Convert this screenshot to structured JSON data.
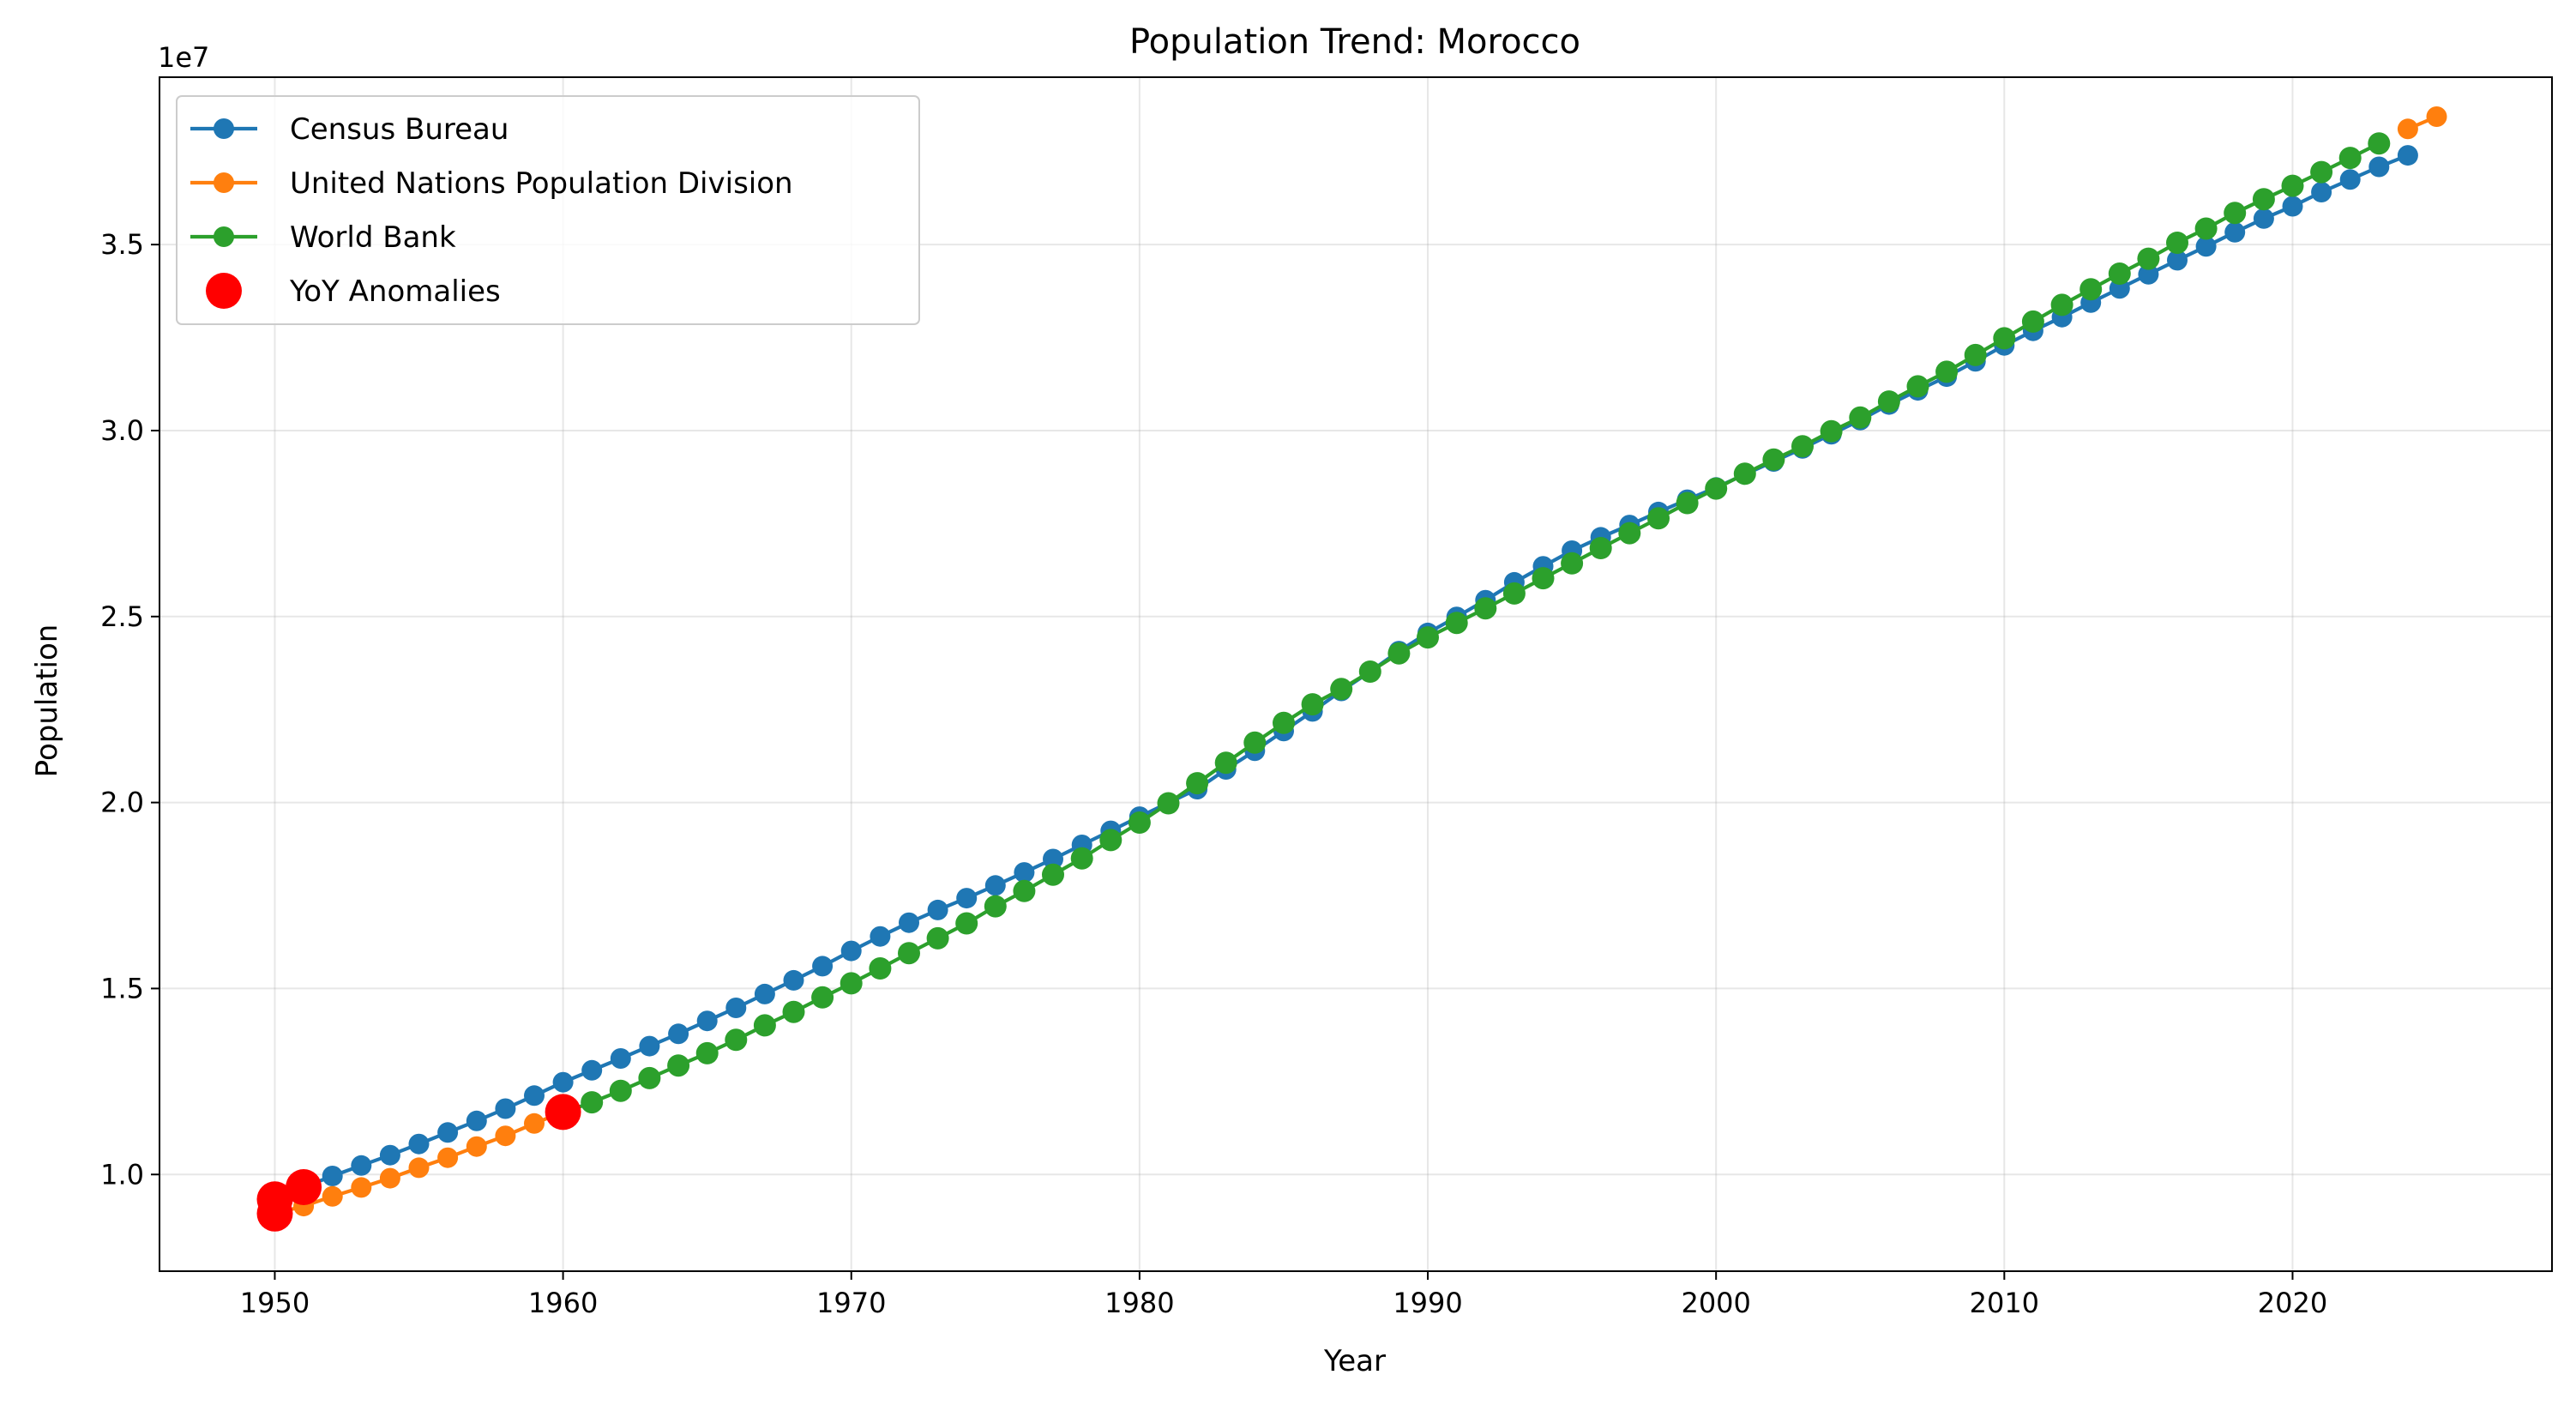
{
  "chart_data": {
    "type": "line",
    "title": "Population Trend: Morocco",
    "xlabel": "Year",
    "ylabel": "Population",
    "y_offset_label": "1e7",
    "y_scale": 10000000,
    "xlim": [
      1946,
      2029
    ],
    "ylim": [
      7400000,
      39500000
    ],
    "x_ticks": [
      1950,
      1960,
      1970,
      1980,
      1990,
      2000,
      2010,
      2020
    ],
    "x_tick_labels": [
      "1950",
      "1960",
      "1970",
      "1980",
      "1990",
      "2000",
      "2010",
      "2020"
    ],
    "y_ticks": [
      10000000,
      15000000,
      20000000,
      25000000,
      30000000,
      35000000
    ],
    "y_tick_labels": [
      "1.0",
      "1.5",
      "2.0",
      "2.5",
      "3.0",
      "3.5"
    ],
    "grid": true,
    "legend_position": "top-left",
    "series": [
      {
        "name": "Census Bureau",
        "color": "#1f77b4",
        "x": [
          1950,
          1951,
          1952,
          1953,
          1954,
          1955,
          1956,
          1957,
          1958,
          1959,
          1960,
          1961,
          1962,
          1963,
          1964,
          1965,
          1966,
          1967,
          1968,
          1969,
          1970,
          1971,
          1972,
          1973,
          1974,
          1975,
          1976,
          1977,
          1978,
          1979,
          1980,
          1981,
          1982,
          1983,
          1984,
          1985,
          1986,
          1987,
          1988,
          1989,
          1990,
          1991,
          1992,
          1993,
          1994,
          1995,
          1996,
          1997,
          1998,
          1999,
          2000,
          2001,
          2002,
          2003,
          2004,
          2005,
          2006,
          2007,
          2008,
          2009,
          2010,
          2011,
          2012,
          2013,
          2014,
          2015,
          2016,
          2017,
          2018,
          2019,
          2020,
          2021,
          2022,
          2023,
          2024
        ],
        "y": [
          9330000,
          9660000,
          9960000,
          10240000,
          10520000,
          10820000,
          11130000,
          11440000,
          11770000,
          12120000,
          12480000,
          12800000,
          13120000,
          13450000,
          13780000,
          14130000,
          14480000,
          14850000,
          15220000,
          15600000,
          16010000,
          16400000,
          16770000,
          17110000,
          17430000,
          17770000,
          18120000,
          18480000,
          18860000,
          19240000,
          19620000,
          19990000,
          20360000,
          20890000,
          21390000,
          21920000,
          22450000,
          23000000,
          23520000,
          24070000,
          24560000,
          24990000,
          25440000,
          25920000,
          26350000,
          26770000,
          27130000,
          27460000,
          27810000,
          28140000,
          28470000,
          28820000,
          29170000,
          29520000,
          29900000,
          30280000,
          30700000,
          31080000,
          31450000,
          31860000,
          32290000,
          32680000,
          33050000,
          33440000,
          33820000,
          34200000,
          34580000,
          34950000,
          35330000,
          35700000,
          36030000,
          36410000,
          36750000,
          37090000,
          37400000
        ]
      },
      {
        "name": "United Nations Population Division",
        "color": "#ff7f0e",
        "x": [
          1950,
          1951,
          1952,
          1953,
          1954,
          1955,
          1956,
          1957,
          1958,
          1959,
          1960,
          2024,
          2025
        ],
        "y": [
          8950000,
          9150000,
          9410000,
          9650000,
          9900000,
          10180000,
          10450000,
          10750000,
          11040000,
          11370000,
          11680000,
          38110000,
          38440000
        ]
      },
      {
        "name": "World Bank",
        "color": "#2ca02c",
        "x": [
          1960,
          1961,
          1962,
          1963,
          1964,
          1965,
          1966,
          1967,
          1968,
          1969,
          1970,
          1971,
          1972,
          1973,
          1974,
          1975,
          1976,
          1977,
          1978,
          1979,
          1980,
          1981,
          1982,
          1983,
          1984,
          1985,
          1986,
          1987,
          1988,
          1989,
          1990,
          1991,
          1992,
          1993,
          1994,
          1995,
          1996,
          1997,
          1998,
          1999,
          2000,
          2001,
          2002,
          2003,
          2004,
          2005,
          2006,
          2007,
          2008,
          2009,
          2010,
          2011,
          2012,
          2013,
          2014,
          2015,
          2016,
          2017,
          2018,
          2019,
          2020,
          2021,
          2022,
          2023
        ],
        "y": [
          11660000,
          11940000,
          12250000,
          12590000,
          12930000,
          13260000,
          13620000,
          14010000,
          14370000,
          14760000,
          15140000,
          15540000,
          15950000,
          16350000,
          16750000,
          17210000,
          17620000,
          18060000,
          18500000,
          18990000,
          19460000,
          19980000,
          20520000,
          21070000,
          21610000,
          22140000,
          22640000,
          23050000,
          23520000,
          24010000,
          24440000,
          24830000,
          25220000,
          25620000,
          26030000,
          26430000,
          26840000,
          27240000,
          27640000,
          28050000,
          28440000,
          28840000,
          29220000,
          29580000,
          29980000,
          30350000,
          30780000,
          31190000,
          31580000,
          32030000,
          32480000,
          32930000,
          33380000,
          33800000,
          34220000,
          34620000,
          35050000,
          35430000,
          35850000,
          36220000,
          36580000,
          36950000,
          37330000,
          37720000
        ]
      }
    ],
    "anomalies": {
      "name": "YoY Anomalies",
      "color": "#ff0000",
      "x": [
        1950,
        1950,
        1951,
        1960
      ],
      "y": [
        9330000,
        8950000,
        9660000,
        11680000
      ]
    }
  }
}
